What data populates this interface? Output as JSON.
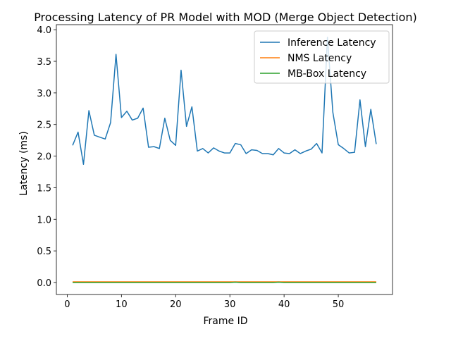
{
  "chart_data": {
    "type": "line",
    "title": "Processing Latency of PR Model with MOD (Merge Object Detection)",
    "xlabel": "Frame ID",
    "ylabel": "Latency (ms)",
    "xlim": [
      -2,
      60
    ],
    "ylim": [
      -0.19,
      4.08
    ],
    "xticks": [
      "0",
      "10",
      "20",
      "30",
      "40",
      "50"
    ],
    "yticks": [
      "0.0",
      "0.5",
      "1.0",
      "1.5",
      "2.0",
      "2.5",
      "3.0",
      "3.5",
      "4.0"
    ],
    "grid": false,
    "legend_position": "top-right",
    "x": [
      1,
      2,
      3,
      4,
      5,
      6,
      7,
      8,
      9,
      10,
      11,
      12,
      13,
      14,
      15,
      16,
      17,
      18,
      19,
      20,
      21,
      22,
      23,
      24,
      25,
      26,
      27,
      28,
      29,
      30,
      31,
      32,
      33,
      34,
      35,
      36,
      37,
      38,
      39,
      40,
      41,
      42,
      43,
      44,
      45,
      46,
      47,
      48,
      49,
      50,
      51,
      52,
      53,
      54,
      55,
      56,
      57
    ],
    "series": [
      {
        "name": "Inference Latency",
        "color": "#1f77b4",
        "values": [
          2.17,
          2.38,
          1.87,
          2.72,
          2.33,
          2.3,
          2.27,
          2.53,
          3.61,
          2.61,
          2.71,
          2.57,
          2.6,
          2.76,
          2.14,
          2.15,
          2.12,
          2.6,
          2.25,
          2.17,
          3.36,
          2.47,
          2.78,
          2.08,
          2.12,
          2.05,
          2.13,
          2.08,
          2.05,
          2.05,
          2.2,
          2.18,
          2.04,
          2.1,
          2.09,
          2.04,
          2.04,
          2.02,
          2.12,
          2.05,
          2.04,
          2.1,
          2.04,
          2.08,
          2.11,
          2.2,
          2.05,
          3.88,
          2.69,
          2.18,
          2.12,
          2.05,
          2.06,
          2.89,
          2.15,
          2.74,
          2.19
        ]
      },
      {
        "name": "NMS Latency",
        "color": "#ff7f0e",
        "values": [
          0.01,
          0.01,
          0.01,
          0.01,
          0.01,
          0.01,
          0.01,
          0.01,
          0.01,
          0.01,
          0.01,
          0.01,
          0.01,
          0.01,
          0.01,
          0.01,
          0.01,
          0.01,
          0.01,
          0.01,
          0.01,
          0.01,
          0.01,
          0.01,
          0.01,
          0.01,
          0.01,
          0.01,
          0.01,
          0.01,
          0.01,
          0.01,
          0.01,
          0.01,
          0.01,
          0.01,
          0.01,
          0.01,
          0.01,
          0.01,
          0.01,
          0.01,
          0.01,
          0.01,
          0.01,
          0.01,
          0.01,
          0.01,
          0.01,
          0.01,
          0.01,
          0.01,
          0.01,
          0.01,
          0.01,
          0.01,
          0.01
        ]
      },
      {
        "name": "MB-Box Latency",
        "color": "#2ca02c",
        "values": [
          0.0,
          0.0,
          0.0,
          0.0,
          0.0,
          0.0,
          0.0,
          0.0,
          0.0,
          0.0,
          0.0,
          0.0,
          0.0,
          0.0,
          0.0,
          0.0,
          0.0,
          0.0,
          0.0,
          0.0,
          0.0,
          0.0,
          0.0,
          0.0,
          0.0,
          0.0,
          0.0,
          0.0,
          0.0,
          0.0,
          0.005,
          0.0,
          0.0,
          0.0,
          0.0,
          0.0,
          0.0,
          0.0,
          0.005,
          0.0,
          0.0,
          0.0,
          0.0,
          0.0,
          0.0,
          0.0,
          0.0,
          0.0,
          0.0,
          0.0,
          0.0,
          0.0,
          0.0,
          0.0,
          0.0,
          0.0,
          0.0
        ]
      }
    ]
  }
}
